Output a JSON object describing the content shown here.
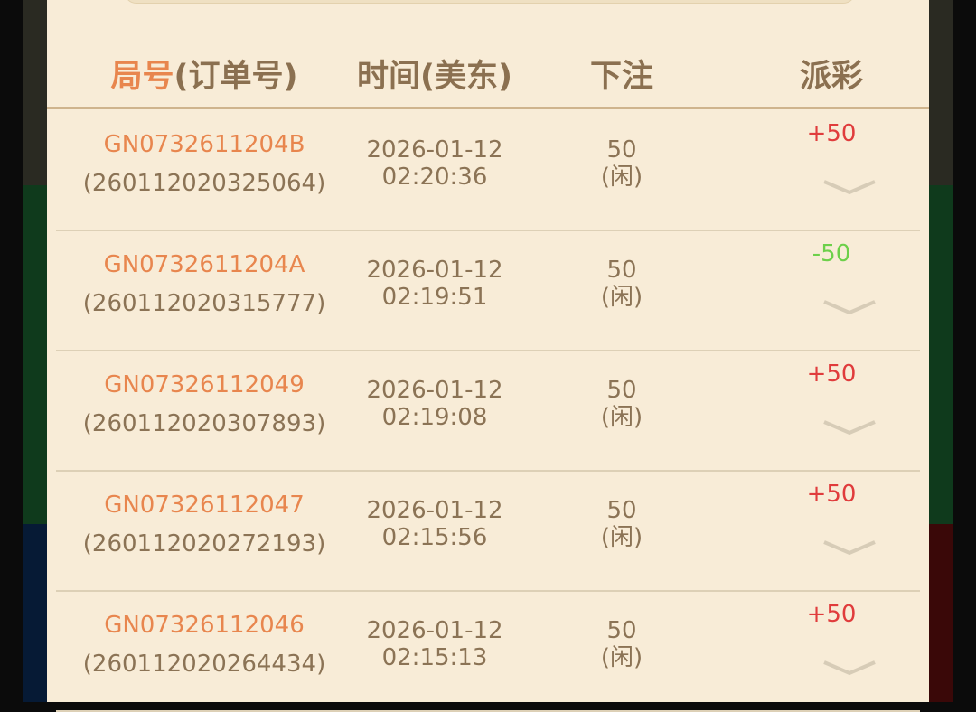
{
  "header": {
    "round_label": "局号",
    "order_label": "(订单号)",
    "time_label": "时间(美东)",
    "bet_label": "下注",
    "payout_label": "派彩"
  },
  "colors": {
    "accent": "#e8864e",
    "text": "#8b7355",
    "win": "#e03c3c",
    "loss": "#6dd04a",
    "background": "#f8ecd7"
  },
  "rows": [
    {
      "game_id": "GN0732611204B",
      "order_no": "(260112020325064)",
      "date": "2026-01-12",
      "time": "02:20:36",
      "bet": "50",
      "bet_side": "(闲)",
      "payout": "+50",
      "result": "win"
    },
    {
      "game_id": "GN0732611204A",
      "order_no": "(260112020315777)",
      "date": "2026-01-12",
      "time": "02:19:51",
      "bet": "50",
      "bet_side": "(闲)",
      "payout": "-50",
      "result": "loss"
    },
    {
      "game_id": "GN07326112049",
      "order_no": "(260112020307893)",
      "date": "2026-01-12",
      "time": "02:19:08",
      "bet": "50",
      "bet_side": "(闲)",
      "payout": "+50",
      "result": "win"
    },
    {
      "game_id": "GN07326112047",
      "order_no": "(260112020272193)",
      "date": "2026-01-12",
      "time": "02:15:56",
      "bet": "50",
      "bet_side": "(闲)",
      "payout": "+50",
      "result": "win"
    },
    {
      "game_id": "GN07326112046",
      "order_no": "(260112020264434)",
      "date": "2026-01-12",
      "time": "02:15:13",
      "bet": "50",
      "bet_side": "(闲)",
      "payout": "+50",
      "result": "win"
    }
  ]
}
